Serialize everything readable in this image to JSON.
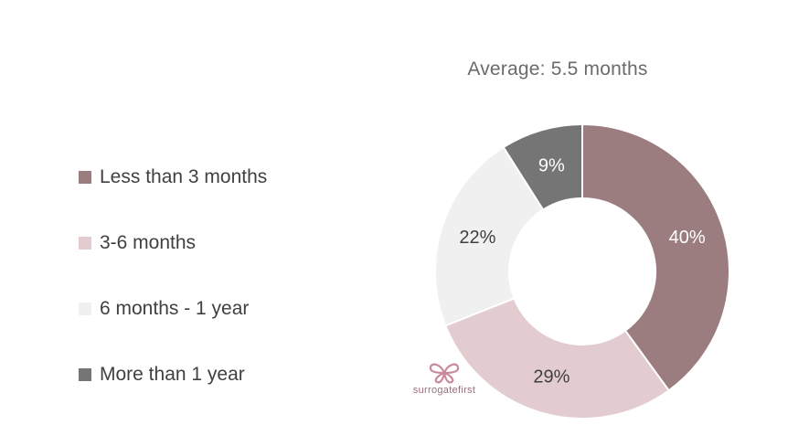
{
  "chart_data": {
    "type": "pie",
    "subtype": "donut",
    "title": "Average: 5.5 months",
    "legend_position": "left",
    "slices": [
      {
        "label": "Less than 3 months",
        "value": 40,
        "display": "40%",
        "color": "#9b7d80"
      },
      {
        "label": "3-6 months",
        "value": 29,
        "display": "29%",
        "color": "#e2cccf"
      },
      {
        "label": "6 months - 1 year",
        "value": 22,
        "display": "22%",
        "color": "#f0f0f0"
      },
      {
        "label": "More than 1 year",
        "value": 9,
        "display": "9%",
        "color": "#757575"
      }
    ]
  },
  "logo": {
    "text": "surrogatefirst",
    "icon": "butterfly-icon",
    "color": "#c88a9b"
  }
}
